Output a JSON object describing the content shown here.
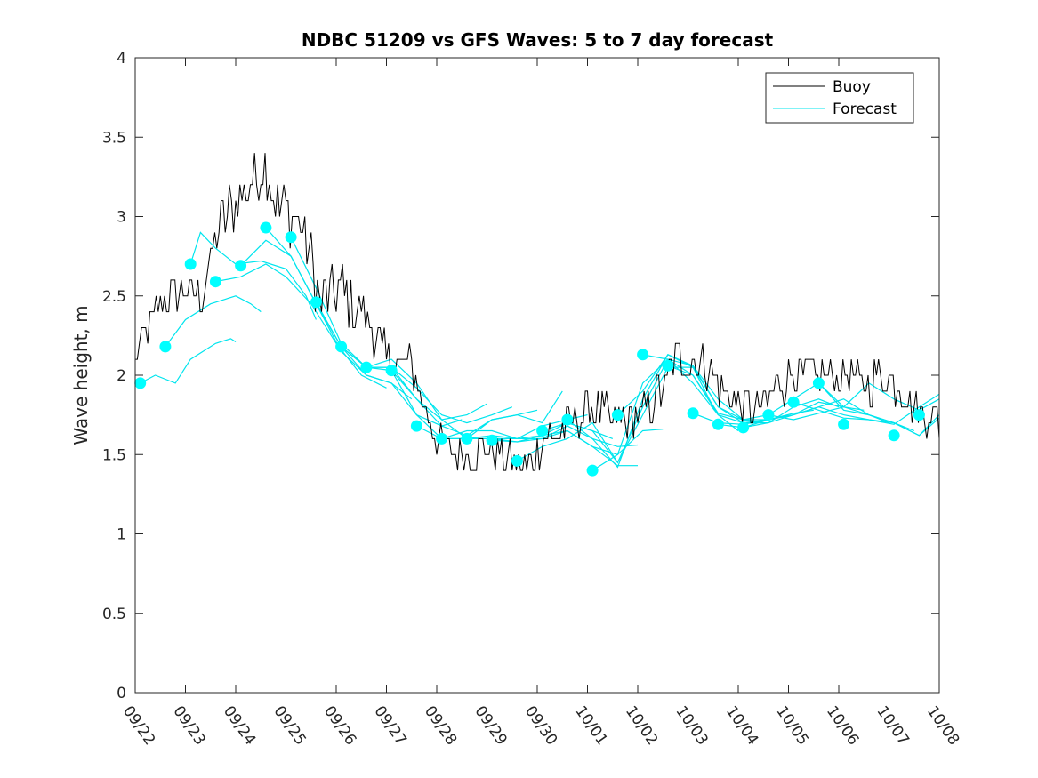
{
  "chart_data": {
    "type": "line",
    "title": "NDBC 51209 vs GFS Waves: 5 to 7 day forecast",
    "xlabel": "",
    "ylabel": "Wave height, m",
    "ylim": [
      0,
      4
    ],
    "xlim_days": [
      0,
      16
    ],
    "yticks": [
      "0",
      "0.5",
      "1",
      "1.5",
      "2",
      "2.5",
      "3",
      "3.5",
      "4"
    ],
    "xticks": [
      "09/22",
      "09/23",
      "09/24",
      "09/25",
      "09/26",
      "09/27",
      "09/28",
      "09/29",
      "09/30",
      "10/01",
      "10/02",
      "10/03",
      "10/04",
      "10/05",
      "10/06",
      "10/07",
      "10/08"
    ],
    "legend": {
      "position": "top-right",
      "entries": [
        {
          "label": "Buoy",
          "color": "#000000"
        },
        {
          "label": "Forecast",
          "color": "#00e5ee"
        }
      ]
    },
    "colors": {
      "buoy": "#000000",
      "forecast": "#00e5ee",
      "marker": "#00ffff"
    },
    "buoy_anchors": {
      "x": [
        0,
        0.5,
        1,
        1.3,
        1.7,
        2,
        2.3,
        2.6,
        2.8,
        3,
        3.3,
        3.7,
        4,
        4.5,
        5,
        5.5,
        6,
        6.5,
        7,
        7.5,
        7.8,
        8,
        8.5,
        9,
        9.5,
        10,
        10.5,
        10.8,
        11,
        11.3,
        11.5,
        12,
        12.5,
        13,
        13.5,
        14,
        14.5,
        15,
        15.5,
        15.8,
        16
      ],
      "y": [
        2.1,
        2.45,
        2.55,
        2.5,
        2.95,
        3.1,
        3.2,
        3.35,
        3.05,
        3.05,
        2.95,
        2.45,
        2.55,
        2.4,
        2.1,
        2.05,
        1.6,
        1.5,
        1.55,
        1.45,
        1.4,
        1.55,
        1.65,
        1.8,
        1.7,
        1.75,
        1.9,
        2.15,
        2.05,
        2.1,
        2.0,
        1.8,
        1.8,
        2.0,
        2.0,
        2.0,
        1.95,
        2.0,
        1.8,
        1.75,
        1.7
      ]
    },
    "forecast_markers": {
      "x": [
        0.1,
        0.6,
        1.1,
        1.6,
        2.1,
        2.6,
        3.1,
        3.6,
        4.1,
        4.6,
        5.1,
        5.6,
        6.1,
        6.6,
        7.1,
        7.6,
        8.1,
        8.6,
        9.1,
        9.6,
        10.1,
        10.6,
        11.1,
        11.6,
        12.1,
        12.6,
        13.1,
        13.6,
        14.1,
        15.1,
        15.6
      ],
      "y": [
        1.95,
        2.18,
        2.7,
        2.59,
        2.69,
        2.93,
        2.87,
        2.46,
        2.18,
        2.05,
        2.03,
        1.68,
        1.6,
        1.6,
        1.59,
        1.46,
        1.65,
        1.72,
        1.4,
        1.75,
        2.13,
        2.06,
        1.76,
        1.69,
        1.67,
        1.75,
        1.83,
        1.95,
        1.69,
        1.62,
        1.75
      ]
    },
    "forecast_segments": [
      {
        "x": [
          0.1,
          0.4,
          0.8,
          1.1,
          1.6,
          1.9,
          2.0
        ],
        "y": [
          1.95,
          2.0,
          1.95,
          2.1,
          2.2,
          2.23,
          2.21
        ]
      },
      {
        "x": [
          0.6,
          1.0,
          1.5,
          2.0,
          2.3,
          2.5
        ],
        "y": [
          2.18,
          2.35,
          2.45,
          2.5,
          2.45,
          2.4
        ]
      },
      {
        "x": [
          1.1,
          1.3,
          1.6,
          2.0,
          2.5,
          3.0,
          3.4,
          3.6
        ],
        "y": [
          2.7,
          2.9,
          2.8,
          2.7,
          2.72,
          2.67,
          2.5,
          2.35
        ]
      },
      {
        "x": [
          1.6,
          2.1,
          2.6,
          3.0,
          3.5,
          4.0,
          4.5,
          5.0
        ],
        "y": [
          2.59,
          2.62,
          2.7,
          2.62,
          2.45,
          2.2,
          2.0,
          1.92
        ]
      },
      {
        "x": [
          2.1,
          2.6,
          3.1,
          3.6,
          4.1,
          4.6,
          5.1,
          5.5
        ],
        "y": [
          2.69,
          2.85,
          2.75,
          2.45,
          2.18,
          2.0,
          1.95,
          1.85
        ]
      },
      {
        "x": [
          2.6,
          3.1,
          3.6,
          4.1,
          4.6,
          5.1,
          5.6,
          6.1,
          6.5
        ],
        "y": [
          2.93,
          2.75,
          2.45,
          2.15,
          2.0,
          1.95,
          1.75,
          1.68,
          1.72
        ]
      },
      {
        "x": [
          3.1,
          3.6,
          4.1,
          4.6,
          5.1,
          5.6,
          6.1,
          6.6,
          7.0
        ],
        "y": [
          2.87,
          2.55,
          2.2,
          2.05,
          2.05,
          1.85,
          1.72,
          1.75,
          1.82
        ]
      },
      {
        "x": [
          3.6,
          4.1,
          4.6,
          5.1,
          5.6,
          6.1,
          6.6,
          7.1,
          7.5
        ],
        "y": [
          2.46,
          2.18,
          2.05,
          2.05,
          1.92,
          1.75,
          1.7,
          1.75,
          1.8
        ]
      },
      {
        "x": [
          4.1,
          4.6,
          5.1,
          5.6,
          6.1,
          6.6,
          7.1,
          7.6,
          8.0
        ],
        "y": [
          2.18,
          2.05,
          2.1,
          1.95,
          1.72,
          1.6,
          1.72,
          1.75,
          1.78
        ]
      },
      {
        "x": [
          4.6,
          5.1,
          5.6,
          6.1,
          6.6,
          7.1,
          7.6,
          8.1,
          8.5
        ],
        "y": [
          2.05,
          2.03,
          1.85,
          1.68,
          1.62,
          1.72,
          1.75,
          1.7,
          1.9
        ]
      },
      {
        "x": [
          5.1,
          5.6,
          6.1,
          6.6,
          7.1,
          7.6,
          8.1,
          8.6,
          9.0
        ],
        "y": [
          2.03,
          1.75,
          1.6,
          1.65,
          1.65,
          1.6,
          1.68,
          1.72,
          1.75
        ]
      },
      {
        "x": [
          5.6,
          6.1,
          6.6,
          7.1,
          7.6,
          8.1,
          8.6,
          9.1,
          9.5
        ],
        "y": [
          1.68,
          1.6,
          1.6,
          1.62,
          1.6,
          1.62,
          1.7,
          1.65,
          1.6
        ]
      },
      {
        "x": [
          6.1,
          6.6,
          7.1,
          7.6,
          8.1,
          8.6,
          9.1,
          9.6,
          10.0
        ],
        "y": [
          1.6,
          1.6,
          1.6,
          1.6,
          1.6,
          1.68,
          1.6,
          1.55,
          1.56
        ]
      },
      {
        "x": [
          6.6,
          7.1,
          7.6,
          8.1,
          8.6,
          9.1,
          9.6,
          10.1,
          10.5
        ],
        "y": [
          1.6,
          1.6,
          1.58,
          1.62,
          1.65,
          1.55,
          1.5,
          1.65,
          1.66
        ]
      },
      {
        "x": [
          7.1,
          7.6,
          8.1,
          8.6,
          9.1,
          9.6,
          10.0
        ],
        "y": [
          1.59,
          1.58,
          1.6,
          1.65,
          1.55,
          1.43,
          1.43
        ]
      },
      {
        "x": [
          7.6,
          8.1,
          8.6,
          9.1,
          9.6,
          10.1,
          10.6,
          11.1,
          11.5
        ],
        "y": [
          1.46,
          1.55,
          1.6,
          1.7,
          1.45,
          1.75,
          2.05,
          2.05,
          1.8
        ]
      },
      {
        "x": [
          8.1,
          8.6,
          9.1,
          9.6,
          10.1,
          10.6,
          11.1,
          11.6,
          12.0
        ],
        "y": [
          1.65,
          1.7,
          1.65,
          1.45,
          1.8,
          2.1,
          1.95,
          1.75,
          1.65
        ]
      },
      {
        "x": [
          8.6,
          9.1,
          9.6,
          10.1,
          10.6,
          11.1,
          11.6,
          12.1,
          12.5
        ],
        "y": [
          1.72,
          1.6,
          1.42,
          1.85,
          2.13,
          2.05,
          1.8,
          1.72,
          1.7
        ]
      },
      {
        "x": [
          9.1,
          9.6,
          10.1,
          10.6,
          11.1,
          11.6,
          12.1,
          12.6,
          13.0
        ],
        "y": [
          1.4,
          1.5,
          1.95,
          2.1,
          2.0,
          1.75,
          1.7,
          1.72,
          1.75
        ]
      },
      {
        "x": [
          9.6,
          10.1,
          10.6,
          11.1,
          11.6,
          12.1,
          12.6,
          13.1,
          13.5
        ],
        "y": [
          1.75,
          1.9,
          2.13,
          2.06,
          1.85,
          1.72,
          1.72,
          1.76,
          1.78
        ]
      },
      {
        "x": [
          10.1,
          10.6,
          11.1,
          11.6,
          12.1,
          12.6,
          13.1,
          13.6,
          14.0
        ],
        "y": [
          2.13,
          2.1,
          2.06,
          1.8,
          1.7,
          1.7,
          1.8,
          1.85,
          1.8
        ]
      },
      {
        "x": [
          10.6,
          11.1,
          11.6,
          12.1,
          12.6,
          13.1,
          13.6,
          14.1,
          14.5
        ],
        "y": [
          2.06,
          2.0,
          1.76,
          1.72,
          1.75,
          1.85,
          1.95,
          1.8,
          1.78
        ]
      },
      {
        "x": [
          11.1,
          11.6,
          12.1,
          12.6,
          13.1,
          13.6,
          14.1,
          14.6,
          15.0
        ],
        "y": [
          1.76,
          1.7,
          1.69,
          1.72,
          1.75,
          1.83,
          1.8,
          1.75,
          1.7
        ]
      },
      {
        "x": [
          11.6,
          12.1,
          12.6,
          13.1,
          13.6,
          14.1,
          14.6,
          15.1,
          15.5
        ],
        "y": [
          1.69,
          1.67,
          1.7,
          1.75,
          1.8,
          1.75,
          1.72,
          1.7,
          1.65
        ]
      },
      {
        "x": [
          12.1,
          12.6,
          13.1,
          13.6,
          14.1,
          14.6,
          15.1,
          15.6,
          16.0
        ],
        "y": [
          1.67,
          1.72,
          1.75,
          1.8,
          1.85,
          1.75,
          1.7,
          1.62,
          1.75
        ]
      },
      {
        "x": [
          12.6,
          13.1,
          13.6,
          14.1,
          14.6,
          15.1,
          15.6,
          16.0
        ],
        "y": [
          1.75,
          1.72,
          1.76,
          1.8,
          1.95,
          1.85,
          1.78,
          1.85
        ]
      },
      {
        "x": [
          13.1,
          13.6,
          14.1,
          14.6,
          15.1,
          15.6,
          16.0
        ],
        "y": [
          1.83,
          1.78,
          1.73,
          1.72,
          1.69,
          1.8,
          1.88
        ]
      },
      {
        "x": [
          13.6,
          14.1,
          14.6,
          15.1,
          15.6,
          16.0
        ],
        "y": [
          1.95,
          1.78,
          1.75,
          1.7,
          1.62,
          1.73
        ]
      }
    ]
  }
}
